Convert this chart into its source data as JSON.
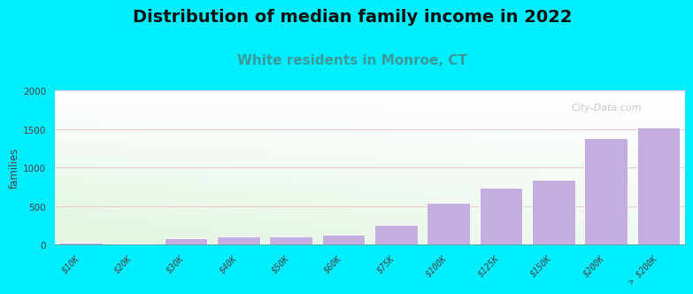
{
  "title": "Distribution of median family income in 2022",
  "subtitle": "White residents in Monroe, CT",
  "categories": [
    "$10K",
    "$20K",
    "$30K",
    "$40K",
    "$50K",
    "$60K",
    "$75K",
    "$100K",
    "$125K",
    "$150K",
    "$200K",
    "> $200K"
  ],
  "values": [
    30,
    15,
    80,
    100,
    110,
    125,
    250,
    540,
    740,
    840,
    1380,
    1520
  ],
  "bar_color": "#c4aee0",
  "ylabel": "families",
  "ylim": [
    0,
    2000
  ],
  "yticks": [
    0,
    500,
    1000,
    1500,
    2000
  ],
  "background_color": "#00eeff",
  "title_fontsize": 14,
  "subtitle_fontsize": 11,
  "subtitle_color": "#3a9a9a",
  "grid_color": "#f0b8c0",
  "watermark": "City-Data.com"
}
